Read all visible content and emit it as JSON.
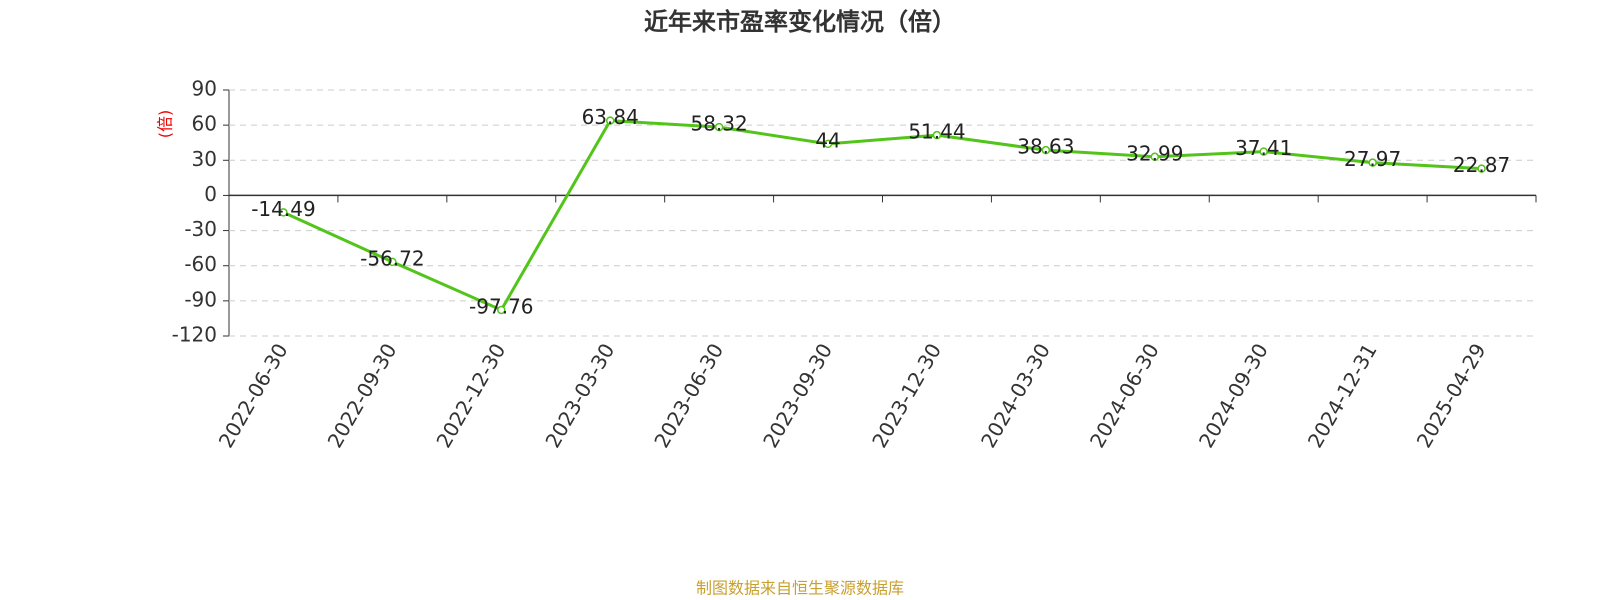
{
  "chart_data": {
    "type": "line",
    "title": "近年来市盈率变化情况（倍）",
    "y_label": "(倍)",
    "categories": [
      "2022-06-30",
      "2022-09-30",
      "2022-12-30",
      "2023-03-30",
      "2023-06-30",
      "2023-09-30",
      "2023-12-30",
      "2024-03-30",
      "2024-06-30",
      "2024-09-30",
      "2024-12-31",
      "2025-04-29"
    ],
    "values": [
      -14.49,
      -56.72,
      -97.76,
      63.84,
      58.32,
      44,
      51.44,
      38.63,
      32.99,
      37.41,
      27.97,
      22.87
    ],
    "color": "#52c41a",
    "ylim": [
      -120,
      90
    ],
    "yticks": [
      -120,
      -90,
      -60,
      -30,
      0,
      30,
      60,
      90
    ],
    "grid": true,
    "source": "制图数据来自恒生聚源数据库"
  }
}
